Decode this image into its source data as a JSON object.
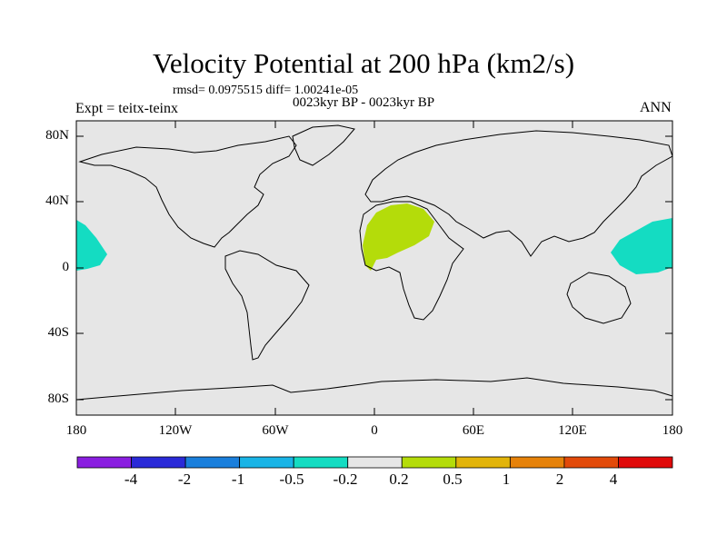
{
  "title": "Velocity Potential at 200 hPa (km2/s)",
  "stats": "rmsd= 0.0975515 diff= 1.00241e-05",
  "experiment": "Expt = teitx-teinx",
  "period": "0023kyr BP - 0023kyr BP",
  "season": "ANN",
  "lat_labels": [
    "80N",
    "40N",
    "0",
    "40S",
    "80S"
  ],
  "lon_labels": [
    "180",
    "120W",
    "60W",
    "0",
    "60E",
    "120E",
    "180"
  ],
  "colorbar": {
    "colors": [
      "#8a1ee0",
      "#2a2ad8",
      "#1a7fdc",
      "#19b4e6",
      "#14dcc2",
      "#e6e6e6",
      "#b4dc0a",
      "#e2b40a",
      "#e6820a",
      "#e24a0a",
      "#e00a0a"
    ],
    "labels": [
      "-4",
      "-2",
      "-1",
      "-0.5",
      "-0.2",
      "0.2",
      "0.5",
      "1",
      "2",
      "4"
    ]
  },
  "map_colors": {
    "background": "#e6e6e6",
    "positive": "#b4dc0a",
    "negative": "#14dcc2"
  }
}
